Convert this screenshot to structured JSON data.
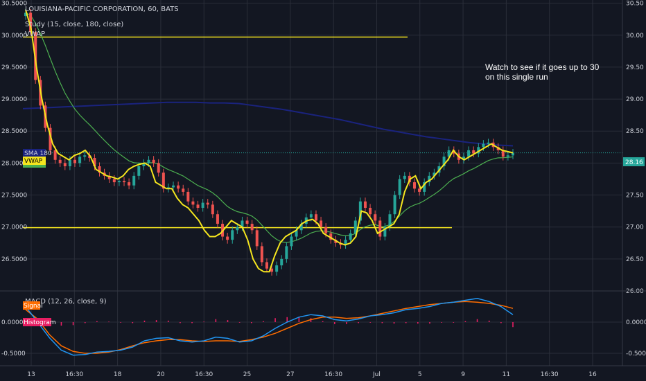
{
  "header": {
    "title": "LOUISIANA-PACIFIC CORPORATION, 60, BATS",
    "study": "Study (15, close, 180, close)",
    "vwap": "VWAP",
    "macd": "MACD (12, 26, close, 9)"
  },
  "annotation": [
    "Watch to see if it goes up to 30",
    "on this single run"
  ],
  "badges": {
    "sma": "SMA 180",
    "vwap": "VWAP",
    "signal": "Signal",
    "histogram": "Histogram",
    "price": "28.16"
  },
  "colors": {
    "background": "#131722",
    "grid": "#2a2e39",
    "up": "#26a69a",
    "down": "#ef5350",
    "vwap_line": "#f5e61e",
    "sma_line": "#2196f3",
    "ema_line": "#4caf50",
    "sma180": "#1a237e",
    "level": "#f5e61e",
    "macd": "#2196f3",
    "signal": "#ff6d00",
    "histogram": "#e91e63"
  },
  "chart_data": [
    {
      "type": "candlestick",
      "y_ticks_left": [
        "30.5000",
        "30.0000",
        "29.5000",
        "29.0000",
        "28.5000",
        "28.0000",
        "27.5000",
        "27.0000",
        "26.5000"
      ],
      "y_ticks_right": [
        "30.50",
        "30.00",
        "29.50",
        "29.00",
        "28.50",
        "28.00",
        "27.50",
        "27.00",
        "26.50",
        "26.00"
      ],
      "ylim": [
        26.0,
        30.55
      ],
      "x_ticks": [
        "13",
        "16:30",
        "18",
        "20",
        "16:30",
        "25",
        "27",
        "16:30",
        "Jul",
        "5",
        "9",
        "11",
        "16:30",
        "16"
      ],
      "levels": [
        29.97,
        26.99
      ],
      "last_price": 28.16,
      "close": [
        30.35,
        30.05,
        29.3,
        28.9,
        28.55,
        28.2,
        28.05,
        28.0,
        27.95,
        28.05,
        28.0,
        28.1,
        28.12,
        28.08,
        27.95,
        27.85,
        27.8,
        27.75,
        27.7,
        27.72,
        27.7,
        27.65,
        27.8,
        27.95,
        28.0,
        28.05,
        28.0,
        27.85,
        27.6,
        27.62,
        27.65,
        27.6,
        27.55,
        27.4,
        27.35,
        27.3,
        27.38,
        27.35,
        27.2,
        27.05,
        26.85,
        26.8,
        26.95,
        27.0,
        27.1,
        27.05,
        26.95,
        26.7,
        26.45,
        26.35,
        26.3,
        26.4,
        26.5,
        26.7,
        26.85,
        26.95,
        27.05,
        27.15,
        27.2,
        27.1,
        27.0,
        26.9,
        26.8,
        26.75,
        26.72,
        26.8,
        26.9,
        27.1,
        27.4,
        27.3,
        27.2,
        27.1,
        26.85,
        27.0,
        27.2,
        27.5,
        27.75,
        27.8,
        27.7,
        27.6,
        27.55,
        27.7,
        27.8,
        27.85,
        27.95,
        28.1,
        28.2,
        28.15,
        28.05,
        28.1,
        28.2,
        28.15,
        28.25,
        28.3,
        28.32,
        28.25,
        28.2,
        28.1,
        28.12,
        28.16
      ],
      "vwap": [
        30.4,
        30.1,
        29.5,
        29.0,
        28.6,
        28.3,
        28.15,
        28.1,
        28.05,
        28.12,
        28.15,
        28.2,
        28.1,
        27.9,
        27.85,
        27.8,
        27.78,
        27.75,
        27.8,
        27.9,
        27.95,
        27.98,
        28.0,
        27.95,
        27.7,
        27.65,
        27.6,
        27.6,
        27.45,
        27.35,
        27.3,
        27.2,
        27.1,
        26.95,
        26.85,
        26.85,
        26.9,
        27.0,
        27.1,
        27.05,
        27.0,
        26.8,
        26.5,
        26.35,
        26.3,
        26.3,
        26.55,
        26.75,
        26.85,
        26.9,
        26.95,
        27.05,
        27.1,
        27.12,
        27.05,
        26.9,
        26.85,
        26.8,
        26.75,
        26.72,
        26.75,
        26.85,
        27.25,
        27.22,
        27.1,
        26.9,
        26.95,
        27.0,
        27.05,
        27.2,
        27.55,
        27.75,
        27.8,
        27.6,
        27.7,
        27.75,
        27.85,
        27.95,
        28.05,
        28.2,
        28.1,
        28.05,
        28.1,
        28.15,
        28.2,
        28.25,
        28.3,
        28.25,
        28.2,
        28.18,
        28.16
      ],
      "sma180": [
        28.85,
        28.86,
        28.87,
        28.88,
        28.89,
        28.9,
        28.91,
        28.92,
        28.93,
        28.94,
        28.95,
        28.95,
        28.95,
        28.94,
        28.94,
        28.93,
        28.9,
        28.87,
        28.84,
        28.8,
        28.76,
        28.72,
        28.68,
        28.63,
        28.58,
        28.53,
        28.49,
        28.45,
        28.41,
        28.38,
        28.35,
        28.32,
        28.3,
        28.28,
        28.27
      ]
    },
    {
      "type": "line",
      "title": "MACD (12, 26, close, 9)",
      "y_ticks": [
        "0.0000",
        "-0.5000"
      ],
      "ylim": [
        -0.7,
        0.5
      ],
      "macd": [
        0.25,
        0.0,
        -0.25,
        -0.45,
        -0.53,
        -0.52,
        -0.48,
        -0.47,
        -0.45,
        -0.4,
        -0.3,
        -0.26,
        -0.25,
        -0.3,
        -0.32,
        -0.3,
        -0.24,
        -0.26,
        -0.32,
        -0.3,
        -0.22,
        -0.1,
        0.0,
        0.08,
        0.12,
        0.1,
        0.04,
        0.02,
        0.05,
        0.1,
        0.12,
        0.15,
        0.2,
        0.22,
        0.25,
        0.3,
        0.32,
        0.35,
        0.38,
        0.33,
        0.25,
        0.12
      ],
      "signal": [
        0.2,
        0.05,
        -0.2,
        -0.38,
        -0.47,
        -0.5,
        -0.5,
        -0.48,
        -0.44,
        -0.38,
        -0.33,
        -0.3,
        -0.28,
        -0.28,
        -0.3,
        -0.31,
        -0.3,
        -0.3,
        -0.31,
        -0.28,
        -0.24,
        -0.18,
        -0.1,
        -0.02,
        0.04,
        0.08,
        0.08,
        0.06,
        0.07,
        0.1,
        0.14,
        0.18,
        0.22,
        0.25,
        0.28,
        0.3,
        0.32,
        0.33,
        0.32,
        0.3,
        0.27,
        0.22
      ]
    }
  ]
}
